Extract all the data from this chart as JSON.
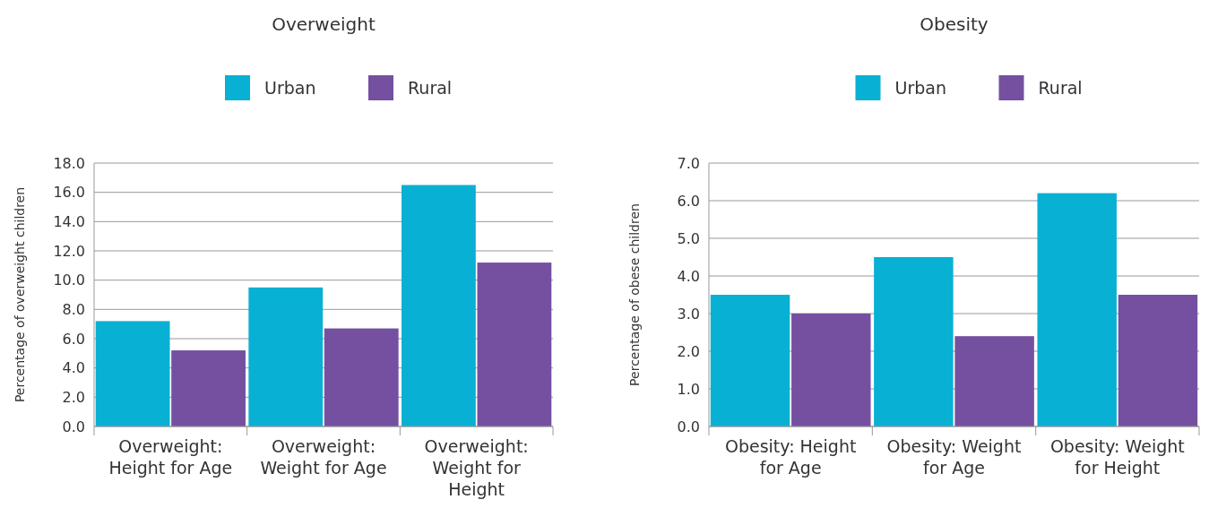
{
  "chart_data": [
    {
      "type": "bar",
      "title": "Overweight",
      "ylabel": "Percentage of overweight children",
      "categories": [
        "Overweight: Height for Age",
        "Overweight: Weight for Age",
        "Overweight: Weight for Height"
      ],
      "series": [
        {
          "name": "Urban",
          "color": "#08b0d3",
          "values": [
            7.2,
            9.5,
            16.5
          ]
        },
        {
          "name": "Rural",
          "color": "#7550a0",
          "values": [
            5.2,
            6.7,
            11.2
          ]
        }
      ],
      "ylim": [
        0,
        18
      ],
      "yticks": [
        {
          "value": 0,
          "label": "0.0"
        },
        {
          "value": 2,
          "label": "2.0"
        },
        {
          "value": 4,
          "label": "4.0"
        },
        {
          "value": 6,
          "label": "6.0"
        },
        {
          "value": 8,
          "label": "8.0"
        },
        {
          "value": 10,
          "label": "10.0"
        },
        {
          "value": 12,
          "label": "12.0"
        },
        {
          "value": 14,
          "label": "14.0"
        },
        {
          "value": 16,
          "label": "16.0"
        },
        {
          "value": 18,
          "label": "18.0"
        }
      ],
      "grid": "y",
      "legend": "top"
    },
    {
      "type": "bar",
      "title": "Obesity",
      "ylabel": "Percentage of obese children",
      "categories": [
        "Obesity: Height for Age",
        "Obesity: Weight for Age",
        "Obesity: Weight for Height"
      ],
      "series": [
        {
          "name": "Urban",
          "color": "#08b0d3",
          "values": [
            3.5,
            4.5,
            6.2
          ]
        },
        {
          "name": "Rural",
          "color": "#7550a0",
          "values": [
            3.0,
            2.4,
            3.5
          ]
        }
      ],
      "ylim": [
        0,
        7
      ],
      "yticks": [
        {
          "value": 0,
          "label": "0.0"
        },
        {
          "value": 1,
          "label": "1.0"
        },
        {
          "value": 2,
          "label": "2.0"
        },
        {
          "value": 3,
          "label": "3.0"
        },
        {
          "value": 4,
          "label": "4.0"
        },
        {
          "value": 5,
          "label": "5.0"
        },
        {
          "value": 6,
          "label": "6.0"
        },
        {
          "value": 7,
          "label": "7.0"
        }
      ],
      "grid": "y",
      "legend": "top"
    }
  ]
}
